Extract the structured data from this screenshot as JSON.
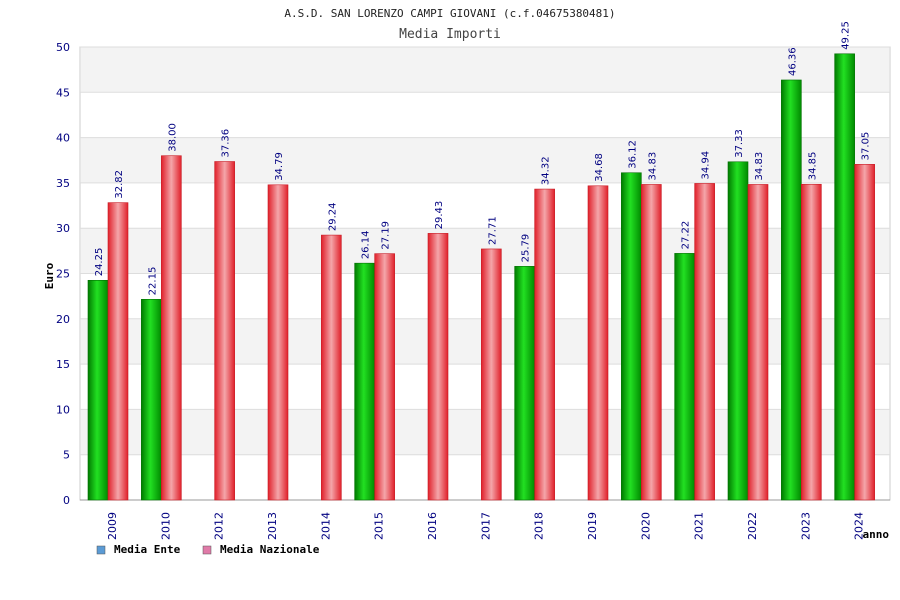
{
  "chart_data": {
    "type": "bar",
    "title": "A.S.D. SAN LORENZO CAMPI GIOVANI (c.f.04675380481)",
    "subtitle": "Media Importi",
    "xlabel": "anno",
    "ylabel": "Euro",
    "ylim": [
      0,
      50
    ],
    "yticks": [
      0,
      5,
      10,
      15,
      20,
      25,
      30,
      35,
      40,
      45,
      50
    ],
    "categories": [
      "2009",
      "2010",
      "2012",
      "2013",
      "2014",
      "2015",
      "2016",
      "2017",
      "2018",
      "2019",
      "2020",
      "2021",
      "2022",
      "2023",
      "2024"
    ],
    "series": [
      {
        "name": "Media Ente",
        "color": "#00aa00",
        "values": [
          24.25,
          22.15,
          null,
          null,
          null,
          26.14,
          null,
          null,
          25.79,
          null,
          36.12,
          27.22,
          37.33,
          46.36,
          49.25
        ],
        "labels": [
          "24.25",
          "22.15",
          null,
          null,
          null,
          "26.14",
          null,
          null,
          "25.79",
          null,
          "36.12",
          "27.22",
          "37.33",
          "46.36",
          "49.25"
        ]
      },
      {
        "name": "Media Nazionale",
        "color": "#e8303a",
        "values": [
          32.82,
          38.0,
          37.36,
          34.79,
          29.24,
          27.19,
          29.43,
          27.71,
          34.32,
          34.68,
          34.83,
          34.94,
          34.83,
          34.85,
          37.05
        ],
        "labels": [
          "32.82",
          "38.00",
          "37.36",
          "34.79",
          "29.24",
          "27.19",
          "29.43",
          "27.71",
          "34.32",
          "34.68",
          "34.83",
          "34.94",
          "34.83",
          "34.85",
          "37.05"
        ]
      }
    ],
    "legend": [
      {
        "label": "Media Ente",
        "color": "#5b9bd5"
      },
      {
        "label": "Media Nazionale",
        "color": "#e07aa8"
      }
    ],
    "grid": true,
    "legend_position": "bottom-left"
  }
}
